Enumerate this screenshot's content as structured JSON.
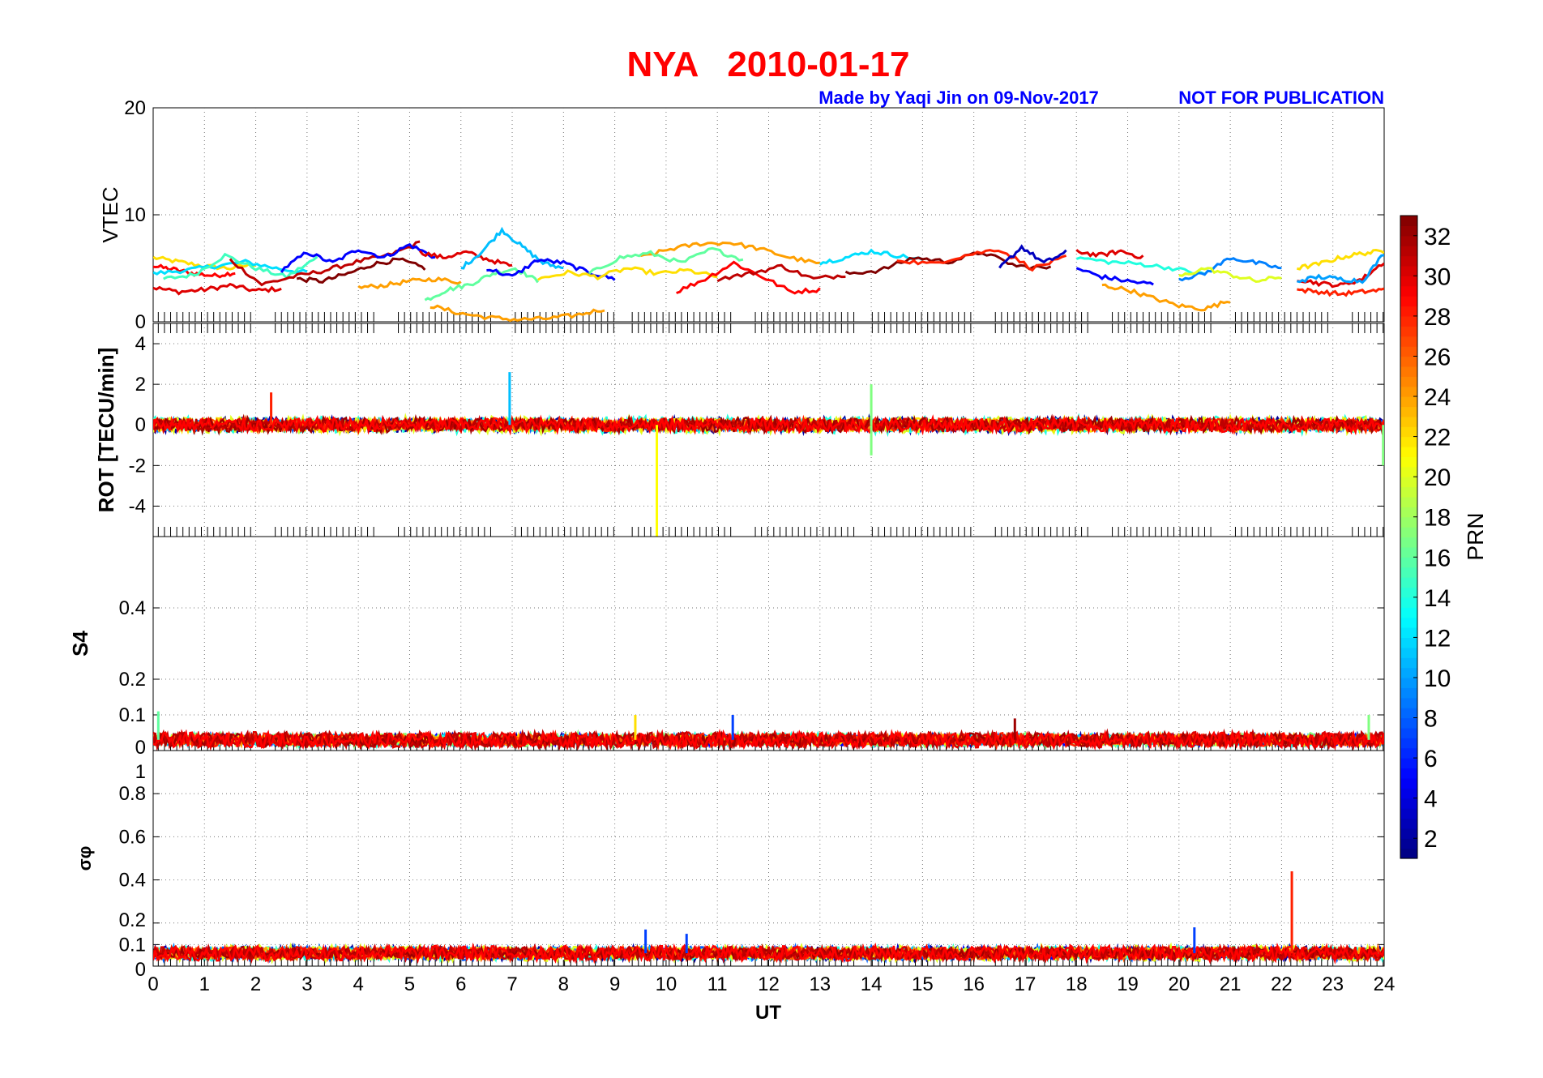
{
  "title": "NYA   2010-01-17",
  "credit": "Made by Yaqi Jin on 09-Nov-2017",
  "notice": "NOT FOR PUBLICATION",
  "colors": {
    "title": "#ff0000",
    "credit": "#0000ff"
  },
  "chart_data": {
    "type": "line",
    "xlabel": "UT",
    "xlim": [
      0,
      24
    ],
    "xticks": [
      "0",
      "1",
      "2",
      "3",
      "4",
      "5",
      "6",
      "7",
      "8",
      "9",
      "10",
      "11",
      "12",
      "13",
      "14",
      "15",
      "16",
      "17",
      "18",
      "19",
      "20",
      "21",
      "22",
      "23",
      "24"
    ],
    "colorbar": {
      "label": "PRN",
      "range": [
        1,
        33
      ],
      "colormap": "jet",
      "ticks": [
        "2",
        "4",
        "6",
        "8",
        "10",
        "12",
        "14",
        "16",
        "18",
        "20",
        "22",
        "24",
        "26",
        "28",
        "30",
        "32"
      ]
    },
    "panels": [
      {
        "id": "vtec",
        "ylabel": "VTEC",
        "ylim": [
          0,
          20
        ],
        "yticks": [
          0,
          10,
          20
        ],
        "yticklabels": [
          "0",
          "10",
          "20"
        ],
        "series": [
          {
            "prn": 22,
            "x0": 0,
            "x1": 2.0,
            "values": [
              6.0,
              5.6,
              5.2,
              5.0,
              5.4
            ]
          },
          {
            "prn": 29,
            "x0": 0,
            "x1": 1.6,
            "values": [
              5.2,
              4.9,
              4.5,
              4.3,
              4.6
            ]
          },
          {
            "prn": 30,
            "x0": 0,
            "x1": 2.5,
            "values": [
              3.2,
              2.8,
              3.0,
              3.4,
              2.9,
              3.1
            ]
          },
          {
            "prn": 12,
            "x0": 0,
            "x1": 3.0,
            "values": [
              4.5,
              4.8,
              5.2,
              5.6,
              5.0,
              4.6
            ]
          },
          {
            "prn": 15,
            "x0": 0.2,
            "x1": 3.2,
            "values": [
              4.0,
              4.4,
              6.2,
              5.0,
              4.2,
              6.0
            ]
          },
          {
            "prn": 31,
            "x0": 1.5,
            "x1": 5.2,
            "values": [
              5.8,
              3.5,
              4.2,
              4.8,
              5.6,
              6.2,
              7.4
            ]
          },
          {
            "prn": 5,
            "x0": 2.5,
            "x1": 5.5,
            "values": [
              4.8,
              6.5,
              5.5,
              6.8,
              6.0,
              7.2,
              6.0
            ]
          },
          {
            "prn": 33,
            "x0": 2.8,
            "x1": 5.3,
            "values": [
              4.0,
              3.8,
              4.5,
              5.4,
              5.8,
              5.0
            ]
          },
          {
            "prn": 24,
            "x0": 4.0,
            "x1": 6.0,
            "values": [
              3.2,
              3.4,
              3.8,
              4.0,
              3.7
            ]
          },
          {
            "prn": 16,
            "x0": 5.3,
            "x1": 7.5,
            "values": [
              2.0,
              3.0,
              3.5,
              4.5,
              5.0,
              3.8
            ]
          },
          {
            "prn": 24,
            "x0": 5.4,
            "x1": 8.8,
            "values": [
              1.5,
              0.8,
              0.4,
              0.2,
              0.3,
              0.6,
              1.2
            ]
          },
          {
            "prn": 30,
            "x0": 5.2,
            "x1": 7.0,
            "values": [
              6.5,
              6.0,
              6.5,
              5.8,
              5.2
            ]
          },
          {
            "prn": 11,
            "x0": 6.0,
            "x1": 8.0,
            "values": [
              5.0,
              6.5,
              8.6,
              7.0,
              5.5,
              5.0
            ]
          },
          {
            "prn": 5,
            "x0": 6.5,
            "x1": 9.0,
            "values": [
              5.0,
              4.2,
              5.8,
              5.5,
              4.6,
              4.0
            ]
          },
          {
            "prn": 22,
            "x0": 7.5,
            "x1": 11.0,
            "values": [
              4.0,
              4.6,
              4.2,
              5.0,
              4.5,
              4.8,
              4.2
            ]
          },
          {
            "prn": 24,
            "x0": 9.5,
            "x1": 13.0,
            "values": [
              6.0,
              6.8,
              7.3,
              7.4,
              6.8,
              6.0,
              5.4
            ]
          },
          {
            "prn": 16,
            "x0": 8.5,
            "x1": 11.5,
            "values": [
              4.5,
              6.0,
              6.4,
              5.5,
              6.8,
              5.8
            ]
          },
          {
            "prn": 29,
            "x0": 10.2,
            "x1": 13.0,
            "values": [
              2.8,
              4.0,
              5.5,
              4.2,
              2.8,
              3.0
            ]
          },
          {
            "prn": 31,
            "x0": 11.0,
            "x1": 13.5,
            "values": [
              4.0,
              4.5,
              5.2,
              4.0,
              4.4
            ]
          },
          {
            "prn": 12,
            "x0": 13.0,
            "x1": 15.0,
            "values": [
              5.5,
              6.0,
              6.6,
              6.2,
              5.8
            ]
          },
          {
            "prn": 33,
            "x0": 13.5,
            "x1": 17.5,
            "values": [
              4.5,
              4.8,
              6.0,
              5.6,
              6.5,
              5.2,
              5.0
            ]
          },
          {
            "prn": 28,
            "x0": 14.5,
            "x1": 17.8,
            "values": [
              5.8,
              5.4,
              6.2,
              6.8,
              5.0,
              6.0
            ]
          },
          {
            "prn": 3,
            "x0": 16.5,
            "x1": 17.8,
            "values": [
              5.0,
              7.0,
              5.5,
              6.5
            ]
          },
          {
            "prn": 30,
            "x0": 18.0,
            "x1": 19.3,
            "values": [
              6.6,
              6.2,
              6.6,
              6.0
            ]
          },
          {
            "prn": 14,
            "x0": 18.0,
            "x1": 20.5,
            "values": [
              6.0,
              5.6,
              5.4,
              5.0,
              4.4
            ]
          },
          {
            "prn": 5,
            "x0": 18.0,
            "x1": 19.5,
            "values": [
              5.0,
              4.2,
              3.8,
              3.5
            ]
          },
          {
            "prn": 24,
            "x0": 18.5,
            "x1": 21.0,
            "values": [
              3.4,
              3.0,
              2.2,
              1.5,
              1.2,
              2.0
            ]
          },
          {
            "prn": 9,
            "x0": 20.0,
            "x1": 22.0,
            "values": [
              4.0,
              4.5,
              6.0,
              5.5,
              5.0
            ]
          },
          {
            "prn": 20,
            "x0": 20.0,
            "x1": 22.0,
            "values": [
              4.2,
              5.0,
              4.4,
              3.8,
              4.2
            ]
          },
          {
            "prn": 22,
            "x0": 22.3,
            "x1": 24,
            "values": [
              5.0,
              5.4,
              6.0,
              6.4,
              6.6
            ]
          },
          {
            "prn": 30,
            "x0": 22.3,
            "x1": 24,
            "values": [
              4.0,
              3.6,
              3.4,
              4.0,
              5.6
            ]
          },
          {
            "prn": 28,
            "x0": 22.3,
            "x1": 24,
            "values": [
              3.0,
              2.8,
              2.6,
              2.8,
              3.0
            ]
          },
          {
            "prn": 10,
            "x0": 22.3,
            "x1": 24,
            "values": [
              3.8,
              4.2,
              4.0,
              3.8,
              6.4
            ]
          }
        ]
      },
      {
        "id": "rot",
        "ylabel": "ROT [TECU/min]",
        "ylim": [
          -5.5,
          5
        ],
        "yticks": [
          -4,
          -2,
          0,
          2,
          4
        ],
        "yticklabels": [
          "-4",
          "-2",
          "0",
          "2",
          "4"
        ],
        "noise": {
          "base": 0,
          "amplitude": 0.35
        },
        "spikes": [
          {
            "x": 9.82,
            "value": -5.5,
            "prn": 21
          },
          {
            "x": 6.95,
            "value": 2.6,
            "prn": 11
          },
          {
            "x": 14.0,
            "value": 2.0,
            "prn": 17
          },
          {
            "x": 2.3,
            "value": 1.6,
            "prn": 28
          },
          {
            "x": 23.98,
            "value": -2.0,
            "prn": 17
          },
          {
            "x": 14.0,
            "value": -1.5,
            "prn": 17
          }
        ]
      },
      {
        "id": "s4",
        "ylabel": "S4",
        "ylim": [
          0,
          0.6
        ],
        "yticks": [
          0,
          0.1,
          0.2,
          0.4
        ],
        "yticklabels": [
          "0",
          "0.1",
          "0.2",
          "0.4"
        ],
        "noise": {
          "base": 0.03,
          "amplitude": 0.02
        },
        "spikes": [
          {
            "x": 11.3,
            "value": 0.1,
            "prn": 7
          },
          {
            "x": 9.4,
            "value": 0.1,
            "prn": 22
          },
          {
            "x": 16.8,
            "value": 0.09,
            "prn": 32
          },
          {
            "x": 0.1,
            "value": 0.11,
            "prn": 16
          },
          {
            "x": 23.7,
            "value": 0.1,
            "prn": 17
          }
        ]
      },
      {
        "id": "sigma",
        "ylabel": "σφ",
        "ylim": [
          0,
          1
        ],
        "yticks": [
          0,
          0.1,
          0.2,
          0.4,
          0.6,
          0.8,
          1
        ],
        "yticklabels": [
          "0",
          "0.1",
          "0.2",
          "0.4",
          "0.6",
          "0.8",
          "1"
        ],
        "noise": {
          "base": 0.06,
          "amplitude": 0.03
        },
        "spikes": [
          {
            "x": 22.2,
            "value": 0.44,
            "prn": 28
          },
          {
            "x": 20.3,
            "value": 0.18,
            "prn": 7
          },
          {
            "x": 9.6,
            "value": 0.17,
            "prn": 7
          },
          {
            "x": 10.4,
            "value": 0.15,
            "prn": 7
          }
        ]
      }
    ]
  }
}
